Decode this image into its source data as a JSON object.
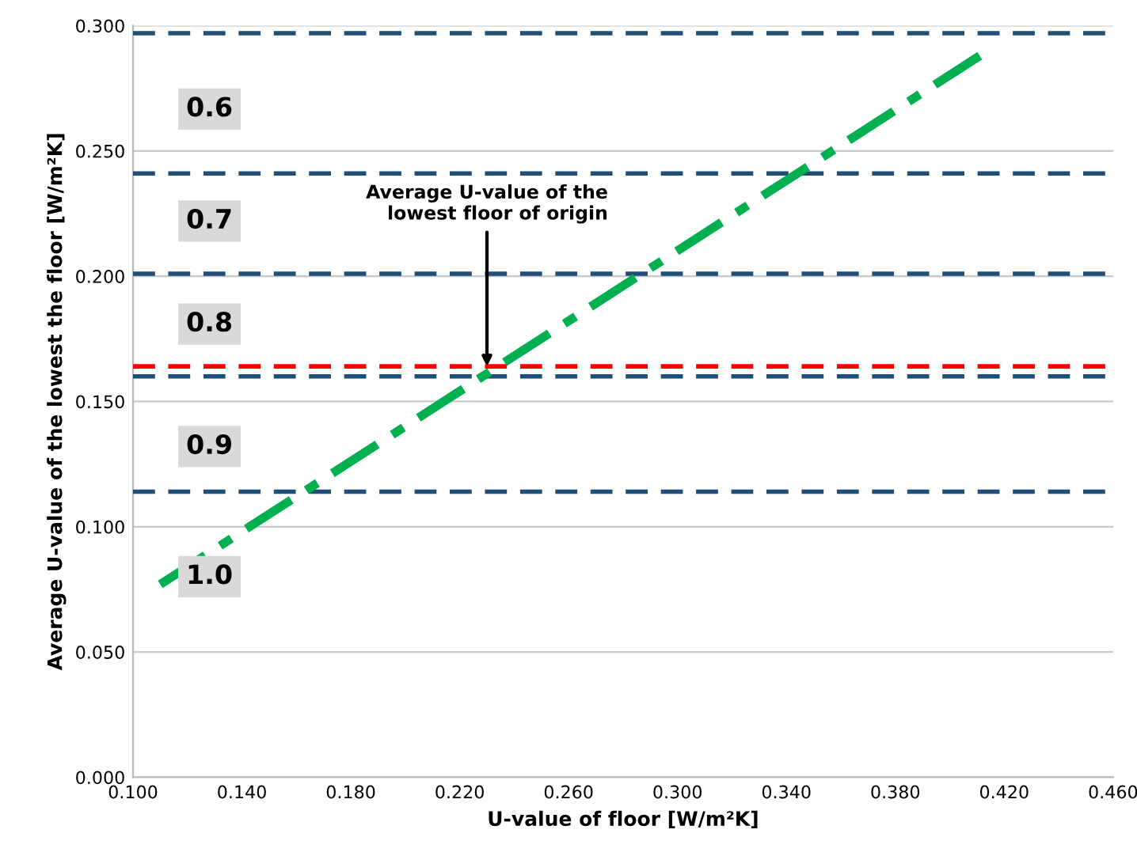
{
  "chart_data": {
    "type": "line",
    "xlabel": "U-value of floor [W/m²K]",
    "ylabel": "Average U-value of the lowest the floor [W/m²K]",
    "series": [
      {
        "color": "#00b050",
        "x": [
          0.11,
          0.411
        ],
        "values": [
          0.077,
          0.288
        ],
        "line_style": "dashdot"
      }
    ],
    "xlim": [
      0.1,
      0.46
    ],
    "xticks": [
      {
        "value": 0.1,
        "label": "0.100"
      },
      {
        "value": 0.14,
        "label": "0.140"
      },
      {
        "value": 0.18,
        "label": "0.180"
      },
      {
        "value": 0.22,
        "label": "0.220"
      },
      {
        "value": 0.26,
        "label": "0.260"
      },
      {
        "value": 0.3,
        "label": "0.300"
      },
      {
        "value": 0.34,
        "label": "0.340"
      },
      {
        "value": 0.38,
        "label": "0.380"
      },
      {
        "value": 0.42,
        "label": "0.420"
      },
      {
        "value": 0.46,
        "label": "0.460"
      }
    ],
    "ylim": [
      0,
      0.3
    ],
    "yticks": [
      {
        "value": 0,
        "label": "0.000"
      },
      {
        "value": 0.05,
        "label": "0.050"
      },
      {
        "value": 0.1,
        "label": "0.100"
      },
      {
        "value": 0.15,
        "label": "0.150"
      },
      {
        "value": 0.2,
        "label": "0.200"
      },
      {
        "value": 0.25,
        "label": "0.250"
      },
      {
        "value": 0.3,
        "label": "0.300"
      }
    ],
    "grid": "y",
    "ref_lines": [
      {
        "axis": "y",
        "value": 0.297,
        "color": "#1f4e79",
        "line_style": "dashed"
      },
      {
        "axis": "y",
        "value": 0.241,
        "color": "#1f4e79",
        "line_style": "dashed"
      },
      {
        "axis": "y",
        "value": 0.201,
        "color": "#1f4e79",
        "line_style": "dashed"
      },
      {
        "axis": "y",
        "value": 0.16,
        "color": "#1f4e79",
        "line_style": "dashed"
      },
      {
        "axis": "y",
        "value": 0.114,
        "color": "#1f4e79",
        "line_style": "dashed"
      },
      {
        "axis": "y",
        "value": 0.164,
        "color": "#ff0000",
        "line_style": "dashed"
      }
    ],
    "annotations": [
      "0.6",
      "0.7",
      "0.8",
      "0.9",
      "1.0",
      {
        "text": "Average U-value of the\nlowest floor of origin",
        "x": 0.23,
        "y": 0.164
      }
    ]
  }
}
